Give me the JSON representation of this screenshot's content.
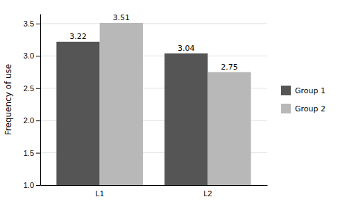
{
  "chart_data": {
    "type": "bar",
    "categories": [
      "L1",
      "L2"
    ],
    "series": [
      {
        "name": "Group 1",
        "color": "#555555",
        "values": [
          3.22,
          3.04
        ]
      },
      {
        "name": "Group 2",
        "color": "#b8b8b8",
        "values": [
          3.51,
          2.75
        ]
      }
    ],
    "ylabel": "Frequency of use",
    "ylim": [
      1,
      3.65
    ],
    "yticks": [
      {
        "value": 1,
        "label": "1.0"
      },
      {
        "value": 1.5,
        "label": "1.5"
      },
      {
        "value": 2,
        "label": "2.0"
      },
      {
        "value": 2.5,
        "label": "2.5"
      },
      {
        "value": 3,
        "label": "3.0"
      },
      {
        "value": 3.5,
        "label": "3.5"
      }
    ],
    "grid": true,
    "legend": "right",
    "data_labels": true
  }
}
